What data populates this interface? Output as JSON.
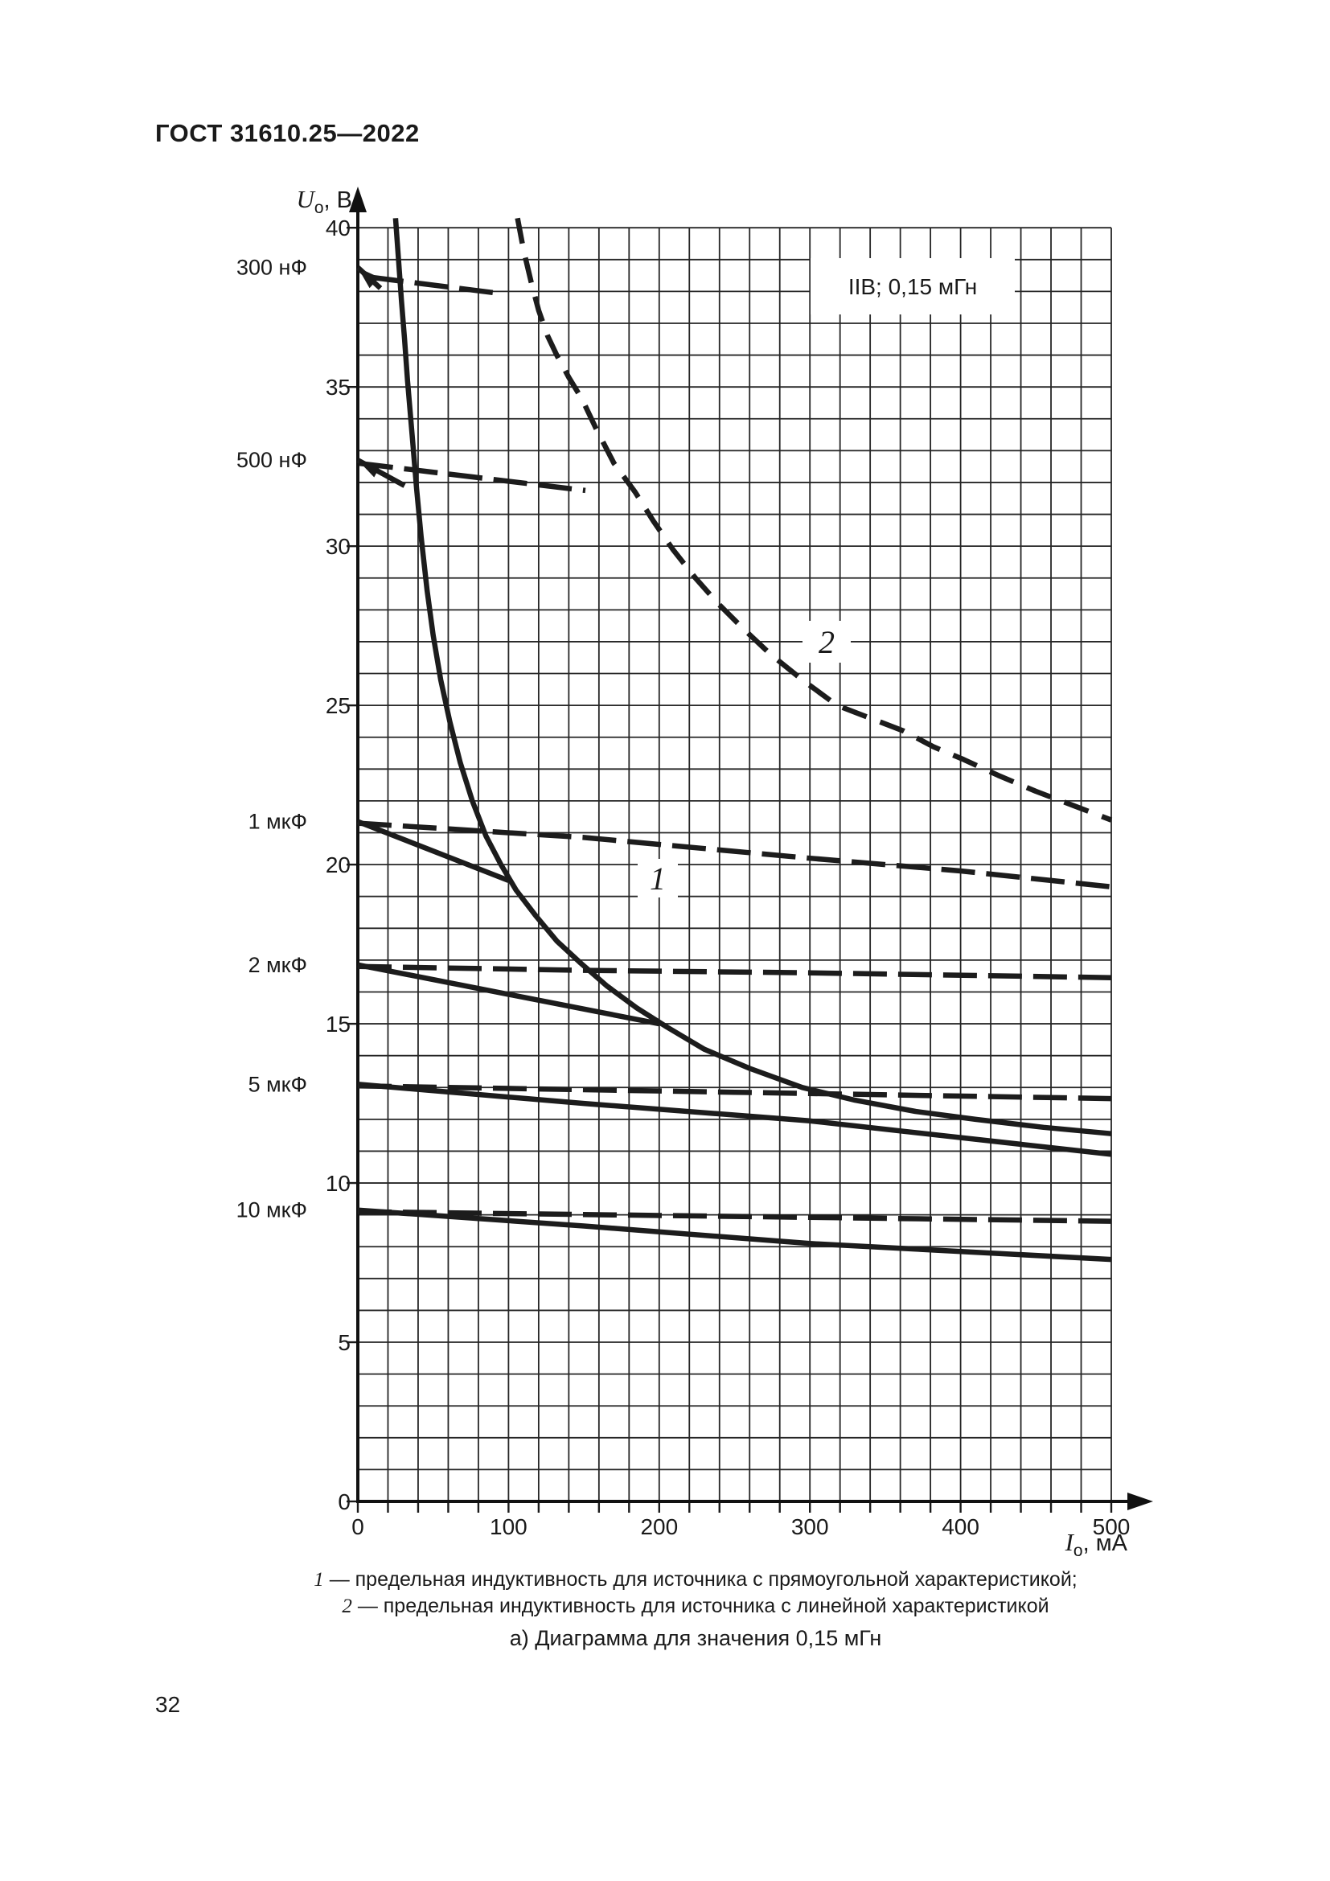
{
  "page": {
    "header": "ГОСТ 31610.25—2022",
    "page_number": "32"
  },
  "chart": {
    "condition_box": "IIB; 0,15 мГн",
    "y_var": "U",
    "y_sub": "o",
    "y_unit": ", В",
    "x_var": "I",
    "x_sub": "o",
    "x_unit": ", мА",
    "curve1_label": "1",
    "curve2_label": "2",
    "y_ticks": [
      "40",
      "35",
      "30",
      "25",
      "20",
      "15",
      "10",
      "5",
      "0"
    ],
    "x_ticks": [
      "0",
      "100",
      "200",
      "300",
      "400",
      "500"
    ]
  },
  "legend": {
    "item1_num": "1",
    "item1_text": "— предельная индуктивность для источника с прямоугольной характеристикой;",
    "item2_num": "2",
    "item2_text": "— предельная индуктивность для источника с линейной характеристикой"
  },
  "caption": "а) Диаграмма для значения 0,15 мГн",
  "chart_data": {
    "type": "line",
    "title": "а) Диаграмма для значения 0,15 мГн",
    "condition": "IIB; 0,15 мГн",
    "xlabel": "Io, мА",
    "ylabel": "Uo, В",
    "xlim": [
      0,
      500
    ],
    "ylim": [
      0,
      40
    ],
    "x_major_step": 100,
    "x_minor_step": 20,
    "y_major_step": 5,
    "y_minor_step": 1,
    "grid": true,
    "series": [
      {
        "id": "curve1",
        "role": "inductance-limit",
        "source": "прямоугольная характеристика",
        "legend_num": "1",
        "style": "solid",
        "points": [
          [
            25,
            40.3
          ],
          [
            27,
            39
          ],
          [
            29,
            37.7
          ],
          [
            31,
            36.5
          ],
          [
            33,
            35.2
          ],
          [
            36,
            33.5
          ],
          [
            39,
            31.8
          ],
          [
            42,
            30.3
          ],
          [
            46,
            28.6
          ],
          [
            50,
            27.2
          ],
          [
            55,
            25.8
          ],
          [
            61,
            24.5
          ],
          [
            68,
            23.2
          ],
          [
            76,
            22.0
          ],
          [
            85,
            20.9
          ],
          [
            95,
            20.0
          ],
          [
            105,
            19.2
          ],
          [
            118,
            18.4
          ],
          [
            132,
            17.6
          ],
          [
            148,
            16.9
          ],
          [
            165,
            16.2
          ],
          [
            185,
            15.5
          ],
          [
            205,
            14.9
          ],
          [
            230,
            14.2
          ],
          [
            260,
            13.6
          ],
          [
            295,
            13.0
          ],
          [
            330,
            12.6
          ],
          [
            370,
            12.25
          ],
          [
            410,
            12.0
          ],
          [
            455,
            11.75
          ],
          [
            500,
            11.55
          ]
        ]
      },
      {
        "id": "curve2",
        "role": "inductance-limit",
        "source": "линейная характеристика",
        "legend_num": "2",
        "style": "dashed",
        "points": [
          [
            106,
            40.3
          ],
          [
            110,
            39.3
          ],
          [
            115,
            38.3
          ],
          [
            120,
            37.4
          ],
          [
            126,
            36.6
          ],
          [
            132,
            36.0
          ],
          [
            140,
            35.3
          ],
          [
            149,
            34.6
          ],
          [
            158,
            33.7
          ],
          [
            170,
            32.6
          ],
          [
            184,
            31.7
          ],
          [
            196,
            30.8
          ],
          [
            209,
            29.9
          ],
          [
            224,
            29.0
          ],
          [
            239,
            28.2
          ],
          [
            256,
            27.4
          ],
          [
            274,
            26.6
          ],
          [
            295,
            25.8
          ],
          [
            318,
            25.0
          ],
          [
            340,
            24.6
          ],
          [
            362,
            24.2
          ],
          [
            382,
            23.7
          ],
          [
            402,
            23.3
          ],
          [
            425,
            22.8
          ],
          [
            450,
            22.3
          ],
          [
            475,
            21.85
          ],
          [
            500,
            21.4
          ]
        ]
      },
      {
        "id": "c300nF-solid",
        "role": "capacitance",
        "capacitance": "300 нФ",
        "label": "300 нФ",
        "style": "solid",
        "arrow": true,
        "points": [
          [
            0,
            38.75
          ],
          [
            15,
            38.1
          ]
        ]
      },
      {
        "id": "c300nF-dashed",
        "role": "capacitance",
        "capacitance": "300 нФ",
        "style": "dashed",
        "points": [
          [
            8,
            38.45
          ],
          [
            92,
            37.95
          ]
        ]
      },
      {
        "id": "c500nF-solid",
        "role": "capacitance",
        "capacitance": "500 нФ",
        "label": "500 нФ",
        "style": "solid",
        "arrow": true,
        "points": [
          [
            0,
            32.7
          ],
          [
            31,
            31.9
          ]
        ]
      },
      {
        "id": "c500nF-dashed",
        "role": "capacitance",
        "capacitance": "500 нФ",
        "style": "dashed",
        "points": [
          [
            1,
            32.6
          ],
          [
            151,
            31.75
          ]
        ]
      },
      {
        "id": "c1uF-solid",
        "role": "capacitance",
        "capacitance": "1 мкФ",
        "label": "1 мкФ",
        "style": "solid",
        "points": [
          [
            0,
            21.35
          ],
          [
            100,
            19.5
          ]
        ]
      },
      {
        "id": "c1uF-dashed",
        "role": "capacitance",
        "capacitance": "1 мкФ",
        "style": "dashed",
        "points": [
          [
            0,
            21.3
          ],
          [
            150,
            20.85
          ],
          [
            300,
            20.2
          ],
          [
            400,
            19.8
          ],
          [
            500,
            19.3
          ]
        ]
      },
      {
        "id": "c2uF-solid",
        "role": "capacitance",
        "capacitance": "2 мкФ",
        "label": "2 мкФ",
        "style": "solid",
        "points": [
          [
            0,
            16.85
          ],
          [
            200,
            15.0
          ]
        ]
      },
      {
        "id": "c2uF-dashed",
        "role": "capacitance",
        "capacitance": "2 мкФ",
        "style": "dashed",
        "points": [
          [
            0,
            16.8
          ],
          [
            150,
            16.68
          ],
          [
            300,
            16.6
          ],
          [
            500,
            16.45
          ]
        ]
      },
      {
        "id": "c5uF-solid",
        "role": "capacitance",
        "capacitance": "5 мкФ",
        "label": "5 мкФ",
        "style": "solid",
        "points": [
          [
            0,
            13.1
          ],
          [
            150,
            12.5
          ],
          [
            300,
            11.95
          ],
          [
            500,
            10.9
          ]
        ]
      },
      {
        "id": "c5uF-dashed",
        "role": "capacitance",
        "capacitance": "5 мкФ",
        "style": "dashed",
        "points": [
          [
            0,
            13.05
          ],
          [
            250,
            12.85
          ],
          [
            500,
            12.65
          ]
        ]
      },
      {
        "id": "c10uF-solid",
        "role": "capacitance",
        "capacitance": "10 мкФ",
        "label": "10 мкФ",
        "style": "solid",
        "points": [
          [
            0,
            9.15
          ],
          [
            150,
            8.65
          ],
          [
            300,
            8.1
          ],
          [
            500,
            7.6
          ]
        ]
      },
      {
        "id": "c10uF-dashed",
        "role": "capacitance",
        "capacitance": "10 мкФ",
        "style": "dashed",
        "points": [
          [
            0,
            9.1
          ],
          [
            250,
            8.95
          ],
          [
            500,
            8.8
          ]
        ]
      }
    ]
  }
}
